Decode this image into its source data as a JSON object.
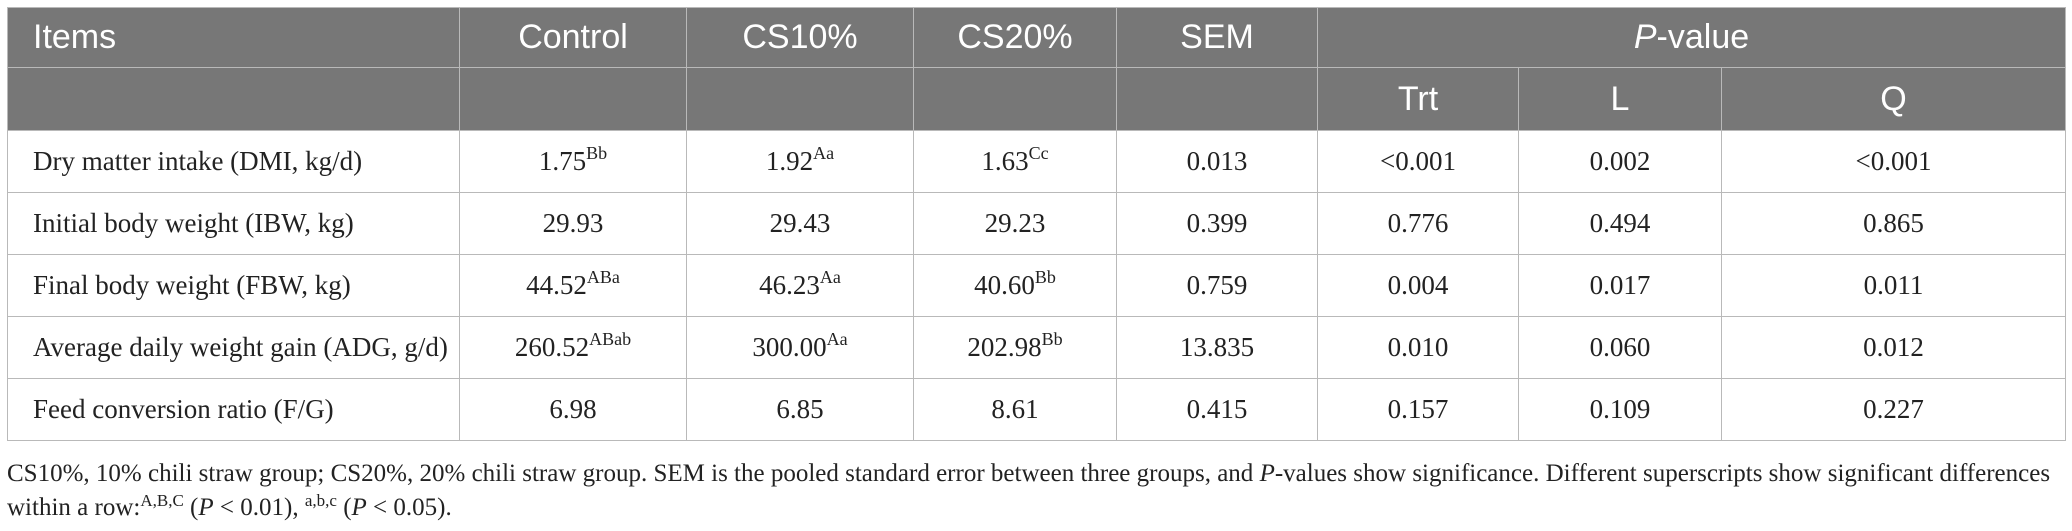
{
  "header": {
    "items": "Items",
    "control": "Control",
    "cs10": "CS10%",
    "cs20": "CS20%",
    "sem": "SEM",
    "p_value_italic": "P",
    "p_value_rest": "-value",
    "trt": "Trt",
    "l": "L",
    "q": "Q"
  },
  "rows": [
    {
      "label": "Dry matter intake (DMI, kg/d)",
      "control": "1.75",
      "control_sup": "Bb",
      "cs10": "1.92",
      "cs10_sup": "Aa",
      "cs20": "1.63",
      "cs20_sup": "Cc",
      "sem": "0.013",
      "trt": "<0.001",
      "l": "0.002",
      "q": "<0.001"
    },
    {
      "label": "Initial body weight (IBW, kg)",
      "control": "29.93",
      "control_sup": "",
      "cs10": "29.43",
      "cs10_sup": "",
      "cs20": "29.23",
      "cs20_sup": "",
      "sem": "0.399",
      "trt": "0.776",
      "l": "0.494",
      "q": "0.865"
    },
    {
      "label": "Final body weight (FBW, kg)",
      "control": "44.52",
      "control_sup": "ABa",
      "cs10": "46.23",
      "cs10_sup": "Aa",
      "cs20": "40.60",
      "cs20_sup": "Bb",
      "sem": "0.759",
      "trt": "0.004",
      "l": "0.017",
      "q": "0.011"
    },
    {
      "label": "Average daily weight gain (ADG, g/d)",
      "control": "260.52",
      "control_sup": "ABab",
      "cs10": "300.00",
      "cs10_sup": "Aa",
      "cs20": "202.98",
      "cs20_sup": "Bb",
      "sem": "13.835",
      "trt": "0.010",
      "l": "0.060",
      "q": "0.012"
    },
    {
      "label": "Feed conversion ratio (F/G)",
      "control": "6.98",
      "control_sup": "",
      "cs10": "6.85",
      "cs10_sup": "",
      "cs20": "8.61",
      "cs20_sup": "",
      "sem": "0.415",
      "trt": "0.157",
      "l": "0.109",
      "q": "0.227"
    }
  ],
  "footnote": {
    "part1": "CS10%, 10% chili straw group; CS20%, 20% chili straw group. SEM is the pooled standard error between three groups, and ",
    "p_italic_1": "P",
    "part2": "-values show significance. Different superscripts show significant differences within a row:",
    "sup_upper": "A,B,C",
    "part3": " (",
    "p_italic_2": "P",
    "part4": " < 0.01), ",
    "sup_lower": "a,b,c",
    "part5": " (",
    "p_italic_3": "P",
    "part6": " < 0.05)."
  }
}
